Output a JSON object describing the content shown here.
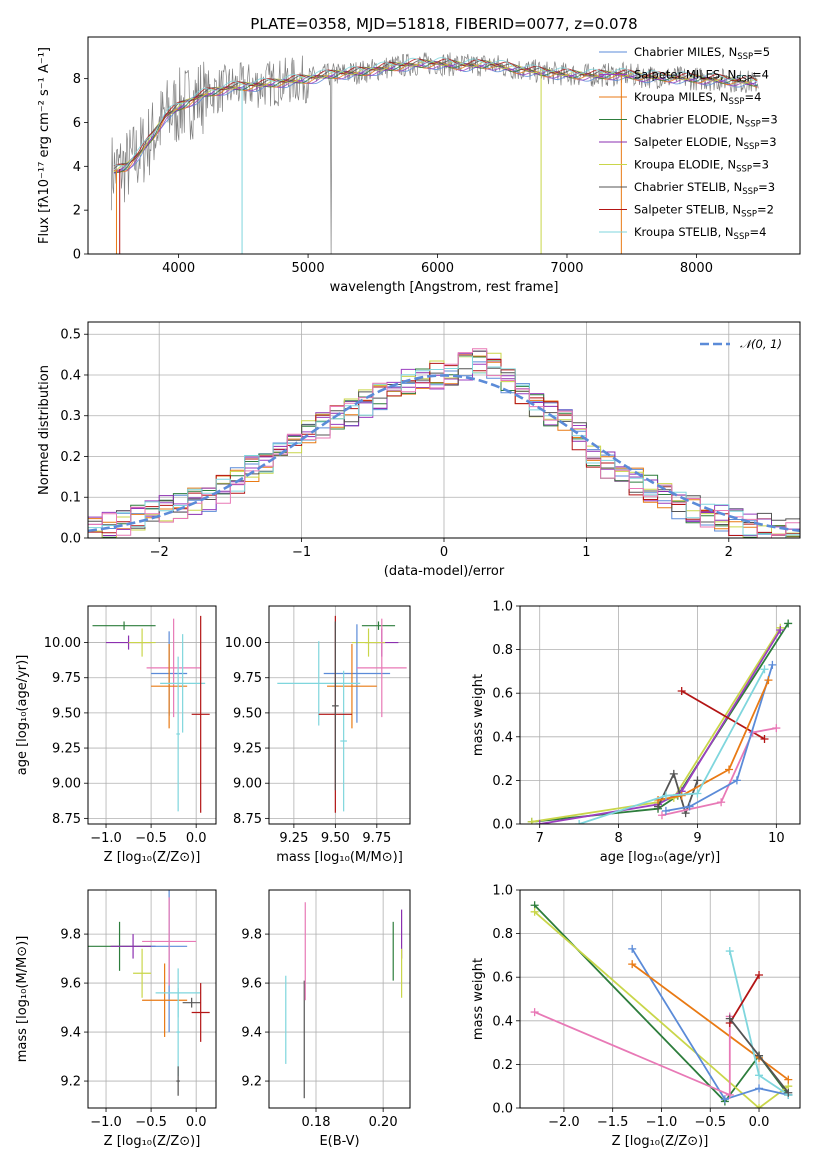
{
  "colors": [
    "#5b8bd8",
    "#9b3fc0",
    "#e97a14",
    "#2d7d3c",
    "#8b2fb0",
    "#c9d64a",
    "#545454",
    "#b31515",
    "#7fd6dd",
    "#e879b6",
    "#a0a0a0"
  ],
  "chart_data": [
    {
      "id": "spectrum",
      "type": "line",
      "title": "PLATE=0358, MJD=51818, FIBERID=0077, z=0.078",
      "xlabel": "wavelength [Angstrom, rest frame]",
      "ylabel": "Flux [fλ10⁻¹⁷ erg cm⁻² s⁻¹ A⁻¹]",
      "xlim": [
        3300,
        8800
      ],
      "ylim": [
        0,
        9.9
      ],
      "xticks": [
        4000,
        5000,
        6000,
        7000,
        8000
      ],
      "yticks": [
        0,
        2,
        4,
        6,
        8
      ],
      "grid": false,
      "legend_position": "right",
      "data_color": "#808080",
      "continuum": {
        "x": [
          3500,
          3600,
          3700,
          3800,
          3900,
          4000,
          4200,
          4400,
          4600,
          4800,
          5000,
          5200,
          5400,
          5600,
          5800,
          6000,
          6200,
          6400,
          6600,
          6800,
          7000,
          7200,
          7400,
          7600,
          7800,
          8000,
          8200,
          8400,
          8480
        ],
        "y": [
          3.8,
          4.0,
          4.6,
          5.4,
          6.3,
          6.7,
          7.3,
          7.6,
          7.7,
          7.85,
          8.0,
          8.2,
          8.3,
          8.5,
          8.65,
          8.7,
          8.6,
          8.65,
          8.45,
          8.3,
          8.2,
          8.15,
          8.2,
          8.1,
          8.05,
          8.0,
          7.95,
          7.85,
          7.8
        ]
      },
      "legend": [
        {
          "label": "Chabrier MILES, N",
          "sub": "SSP",
          "n": "=5",
          "color": "#5b8bd8"
        },
        {
          "label": "Salpeter MILES, N",
          "sub": "SSP",
          "n": "=4",
          "color": "#9b3fc0"
        },
        {
          "label": "Kroupa MILES, N",
          "sub": "SSP",
          "n": "=4",
          "color": "#e97a14"
        },
        {
          "label": "Chabrier ELODIE, N",
          "sub": "SSP",
          "n": "=3",
          "color": "#2d7d3c"
        },
        {
          "label": "Salpeter ELODIE, N",
          "sub": "SSP",
          "n": "=3",
          "color": "#8b2fb0"
        },
        {
          "label": "Kroupa ELODIE, N",
          "sub": "SSP",
          "n": "=3",
          "color": "#c9d64a"
        },
        {
          "label": "Chabrier STELIB, N",
          "sub": "SSP",
          "n": "=3",
          "color": "#545454"
        },
        {
          "label": "Salpeter STELIB, N",
          "sub": "SSP",
          "n": "=2",
          "color": "#b31515"
        },
        {
          "label": "Kroupa STELIB, N",
          "sub": "SSP",
          "n": "=4",
          "color": "#7fd6dd"
        }
      ]
    },
    {
      "id": "residuals",
      "type": "histogram",
      "xlabel": "(data-model)/error",
      "ylabel": "Normed distribution",
      "xlim": [
        -2.5,
        2.5
      ],
      "ylim": [
        0,
        0.53
      ],
      "xticks": [
        -2,
        -1,
        0,
        1,
        2
      ],
      "yticks": [
        0.0,
        0.1,
        0.2,
        0.3,
        0.4,
        0.5
      ],
      "grid": true,
      "legend": [
        {
          "label": "𝒩(0, 1)",
          "color": "#5b8bd8",
          "style": "dashed"
        }
      ],
      "bin_width": 0.1,
      "bin_start": -2.5,
      "values": [
        0.02,
        0.03,
        0.04,
        0.05,
        0.06,
        0.07,
        0.08,
        0.09,
        0.1,
        0.12,
        0.14,
        0.17,
        0.19,
        0.21,
        0.24,
        0.26,
        0.28,
        0.29,
        0.31,
        0.33,
        0.35,
        0.37,
        0.38,
        0.39,
        0.4,
        0.41,
        0.42,
        0.43,
        0.42,
        0.39,
        0.36,
        0.33,
        0.31,
        0.29,
        0.25,
        0.2,
        0.18,
        0.16,
        0.14,
        0.12,
        0.1,
        0.08,
        0.07,
        0.06,
        0.05,
        0.04,
        0.03,
        0.03,
        0.02,
        0.02
      ]
    },
    {
      "id": "age-vs-Z",
      "type": "scatter",
      "xlabel": "Z [log₁₀(Z/Z⊙)]",
      "ylabel": "age  [log₁₀(age/yr)]",
      "xlim": [
        -1.2,
        0.22
      ],
      "ylim": [
        8.71,
        10.26
      ],
      "xticks": [
        -1.0,
        -0.5,
        0.0
      ],
      "yticks": [
        8.75,
        9.0,
        9.25,
        9.5,
        9.75,
        10.0
      ],
      "grid": true,
      "points": [
        {
          "x": -0.8,
          "y": 10.12,
          "xerr": 0.35,
          "yerr": 0.03,
          "color": "#2d7d3c"
        },
        {
          "x": -0.75,
          "y": 10.0,
          "xerr": 0.25,
          "yerr": 0.05,
          "color": "#8b2fb0"
        },
        {
          "x": -0.6,
          "y": 10.0,
          "xerr": 0.15,
          "yerr": 0.1,
          "color": "#c9d64a"
        },
        {
          "x": -0.3,
          "y": 9.78,
          "xerr": 0.2,
          "yerr": 0.3,
          "color": "#5b8bd8"
        },
        {
          "x": -0.25,
          "y": 9.82,
          "xerr": 0.3,
          "yerr": 0.35,
          "color": "#e879b6"
        },
        {
          "x": -0.3,
          "y": 9.69,
          "xerr": 0.2,
          "yerr": 0.3,
          "color": "#e97a14"
        },
        {
          "x": -0.15,
          "y": 9.71,
          "xerr": 0.25,
          "yerr": 0.35,
          "color": "#7fd6dd"
        },
        {
          "x": -0.2,
          "y": 9.35,
          "xerr": 0.02,
          "yerr": 0.55,
          "color": "#7fd6dd"
        },
        {
          "x": 0.05,
          "y": 9.49,
          "xerr": 0.1,
          "yerr": 0.7,
          "color": "#b31515"
        }
      ]
    },
    {
      "id": "age-vs-mass",
      "type": "scatter",
      "xlabel": "mass [log₁₀(M/M⊙)]",
      "ylabel": "",
      "xlim": [
        9.1,
        9.95
      ],
      "ylim": [
        8.71,
        10.26
      ],
      "xticks": [
        9.25,
        9.5,
        9.75
      ],
      "yticks": [
        8.75,
        9.0,
        9.25,
        9.5,
        9.75,
        10.0
      ],
      "grid": true,
      "points": [
        {
          "x": 9.76,
          "y": 10.12,
          "xerr": 0.1,
          "yerr": 0.03,
          "color": "#2d7d3c"
        },
        {
          "x": 9.78,
          "y": 10.0,
          "xerr": 0.1,
          "yerr": 0.1,
          "color": "#8b2fb0"
        },
        {
          "x": 9.7,
          "y": 10.0,
          "xerr": 0.1,
          "yerr": 0.1,
          "color": "#c9d64a"
        },
        {
          "x": 9.63,
          "y": 9.78,
          "xerr": 0.2,
          "yerr": 0.35,
          "color": "#5b8bd8"
        },
        {
          "x": 9.78,
          "y": 9.82,
          "xerr": 0.15,
          "yerr": 0.35,
          "color": "#e879b6"
        },
        {
          "x": 9.6,
          "y": 9.69,
          "xerr": 0.15,
          "yerr": 0.3,
          "color": "#e97a14"
        },
        {
          "x": 9.4,
          "y": 9.71,
          "xerr": 0.25,
          "yerr": 0.3,
          "color": "#7fd6dd"
        },
        {
          "x": 9.55,
          "y": 9.3,
          "xerr": 0.02,
          "yerr": 0.5,
          "color": "#7fd6dd"
        },
        {
          "x": 9.5,
          "y": 9.49,
          "xerr": 0.1,
          "yerr": 0.7,
          "color": "#b31515"
        },
        {
          "x": 9.5,
          "y": 9.55,
          "xerr": 0.02,
          "yerr": 0.6,
          "color": "#545454"
        }
      ]
    },
    {
      "id": "weight-vs-age",
      "type": "line",
      "xlabel": "age  [log₁₀(age/yr)]",
      "ylabel": "mass weight",
      "xlim": [
        6.75,
        10.3
      ],
      "ylim": [
        0,
        1.0
      ],
      "xticks": [
        7,
        8,
        9,
        10
      ],
      "yticks": [
        0.0,
        0.2,
        0.4,
        0.6,
        0.8,
        1.0
      ],
      "grid": true,
      "series": [
        {
          "color": "#2d7d3c",
          "x": [
            6.9,
            8.5,
            8.75,
            10.15
          ],
          "y": [
            0.01,
            0.07,
            0.13,
            0.92
          ]
        },
        {
          "color": "#c9d64a",
          "x": [
            6.9,
            8.5,
            8.7,
            10.05
          ],
          "y": [
            0.01,
            0.1,
            0.12,
            0.9
          ]
        },
        {
          "color": "#9b3fc0",
          "x": [
            7.0,
            8.5,
            8.8,
            10.05
          ],
          "y": [
            0.0,
            0.09,
            0.15,
            0.89
          ]
        },
        {
          "color": "#545454",
          "x": [
            8.5,
            8.7,
            8.85,
            9.0
          ],
          "y": [
            0.08,
            0.23,
            0.05,
            0.2
          ]
        },
        {
          "color": "#b31515",
          "x": [
            8.8,
            9.85
          ],
          "y": [
            0.61,
            0.39
          ]
        },
        {
          "color": "#e879b6",
          "x": [
            8.55,
            9.3,
            9.7,
            10.0
          ],
          "y": [
            0.04,
            0.1,
            0.42,
            0.44
          ]
        },
        {
          "color": "#5b8bd8",
          "x": [
            8.6,
            8.9,
            9.5,
            9.95
          ],
          "y": [
            0.06,
            0.08,
            0.2,
            0.73
          ]
        },
        {
          "color": "#e97a14",
          "x": [
            8.5,
            8.8,
            9.4,
            9.9
          ],
          "y": [
            0.11,
            0.13,
            0.25,
            0.66
          ]
        },
        {
          "color": "#7fd6dd",
          "x": [
            7.5,
            8.6,
            9.0,
            9.85
          ],
          "y": [
            0.0,
            0.13,
            0.14,
            0.71
          ]
        }
      ]
    },
    {
      "id": "mass-vs-Z",
      "type": "scatter",
      "xlabel": "Z [log₁₀(Z/Z⊙)]",
      "ylabel": "mass [log₁₀(M/M⊙)]",
      "xlim": [
        -1.2,
        0.22
      ],
      "ylim": [
        9.09,
        9.98
      ],
      "xticks": [
        -1.0,
        -0.5,
        0.0
      ],
      "yticks": [
        9.2,
        9.4,
        9.6,
        9.8
      ],
      "grid": true,
      "points": [
        {
          "x": -0.85,
          "y": 9.75,
          "xerr": 0.35,
          "yerr": 0.1,
          "color": "#2d7d3c"
        },
        {
          "x": -0.7,
          "y": 9.75,
          "xerr": 0.25,
          "yerr": 0.05,
          "color": "#8b2fb0"
        },
        {
          "x": -0.6,
          "y": 9.64,
          "xerr": 0.1,
          "yerr": 0.1,
          "color": "#c9d64a"
        },
        {
          "x": -0.3,
          "y": 9.75,
          "xerr": 0.2,
          "yerr": 0.35,
          "color": "#5b8bd8"
        },
        {
          "x": -0.3,
          "y": 9.77,
          "xerr": 0.3,
          "yerr": 0.18,
          "color": "#e879b6"
        },
        {
          "x": -0.35,
          "y": 9.53,
          "xerr": 0.25,
          "yerr": 0.15,
          "color": "#e97a14"
        },
        {
          "x": -0.2,
          "y": 9.56,
          "xerr": 0.25,
          "yerr": 0.1,
          "color": "#7fd6dd"
        },
        {
          "x": -0.2,
          "y": 9.4,
          "xerr": 0.02,
          "yerr": 0.18,
          "color": "#7fd6dd"
        },
        {
          "x": -0.05,
          "y": 9.52,
          "xerr": 0.1,
          "yerr": 0.02,
          "color": "#545454"
        },
        {
          "x": 0.05,
          "y": 9.48,
          "xerr": 0.1,
          "yerr": 0.12,
          "color": "#b31515"
        },
        {
          "x": -0.2,
          "y": 9.2,
          "xerr": 0.02,
          "yerr": 0.06,
          "color": "#545454"
        }
      ]
    },
    {
      "id": "mass-vs-EBV",
      "type": "scatter",
      "xlabel": "E(B-V)",
      "ylabel": "",
      "xlim": [
        0.166,
        0.208
      ],
      "ylim": [
        9.09,
        9.98
      ],
      "xticks": [
        0.18,
        0.2
      ],
      "yticks": [
        9.2,
        9.4,
        9.6,
        9.8
      ],
      "grid": true,
      "points": [
        {
          "x": 0.171,
          "y": 9.45,
          "xerr": 0,
          "yerr": 0.18,
          "color": "#7fd6dd"
        },
        {
          "x": 0.1765,
          "y": 9.37,
          "xerr": 0,
          "yerr": 0.24,
          "color": "#545454"
        },
        {
          "x": 0.1768,
          "y": 9.73,
          "xerr": 0,
          "yerr": 0.2,
          "color": "#e879b6"
        },
        {
          "x": 0.203,
          "y": 9.73,
          "xerr": 0,
          "yerr": 0.12,
          "color": "#2d7d3c"
        },
        {
          "x": 0.2055,
          "y": 9.8,
          "xerr": 0,
          "yerr": 0.1,
          "color": "#8b2fb0"
        },
        {
          "x": 0.2055,
          "y": 9.64,
          "xerr": 0,
          "yerr": 0.1,
          "color": "#c9d64a"
        }
      ]
    },
    {
      "id": "weight-vs-Z",
      "type": "line",
      "xlabel": "Z [log₁₀(Z/Z⊙)]",
      "ylabel": "mass weight",
      "xlim": [
        -2.45,
        0.42
      ],
      "ylim": [
        0,
        1.0
      ],
      "xticks": [
        -2.0,
        -1.5,
        -1.0,
        -0.5,
        0.0
      ],
      "yticks": [
        0.0,
        0.2,
        0.4,
        0.6,
        0.8,
        1.0
      ],
      "grid": true,
      "series": [
        {
          "color": "#2d7d3c",
          "x": [
            -2.3,
            -0.35,
            0.0,
            0.3
          ],
          "y": [
            0.93,
            0.03,
            0.24,
            0.06
          ]
        },
        {
          "color": "#c9d64a",
          "x": [
            -2.3,
            0.0,
            0.3
          ],
          "y": [
            0.9,
            0.0,
            0.1
          ]
        },
        {
          "color": "#5b8bd8",
          "x": [
            -1.3,
            -0.35,
            0.0,
            0.3
          ],
          "y": [
            0.73,
            0.04,
            0.09,
            0.06
          ]
        },
        {
          "color": "#e97a14",
          "x": [
            -1.3,
            0.0,
            0.3
          ],
          "y": [
            0.66,
            0.23,
            0.13
          ]
        },
        {
          "color": "#e879b6",
          "x": [
            -2.3,
            -0.3,
            -0.3
          ],
          "y": [
            0.44,
            0.06,
            0.42
          ]
        },
        {
          "color": "#7fd6dd",
          "x": [
            -0.3,
            0.0,
            0.3
          ],
          "y": [
            0.72,
            0.15,
            0.06
          ]
        },
        {
          "color": "#b31515",
          "x": [
            -0.3,
            0.0
          ],
          "y": [
            0.39,
            0.61
          ]
        },
        {
          "color": "#545454",
          "x": [
            -0.3,
            0.0,
            0.3
          ],
          "y": [
            0.41,
            0.24,
            0.07
          ]
        }
      ]
    }
  ]
}
